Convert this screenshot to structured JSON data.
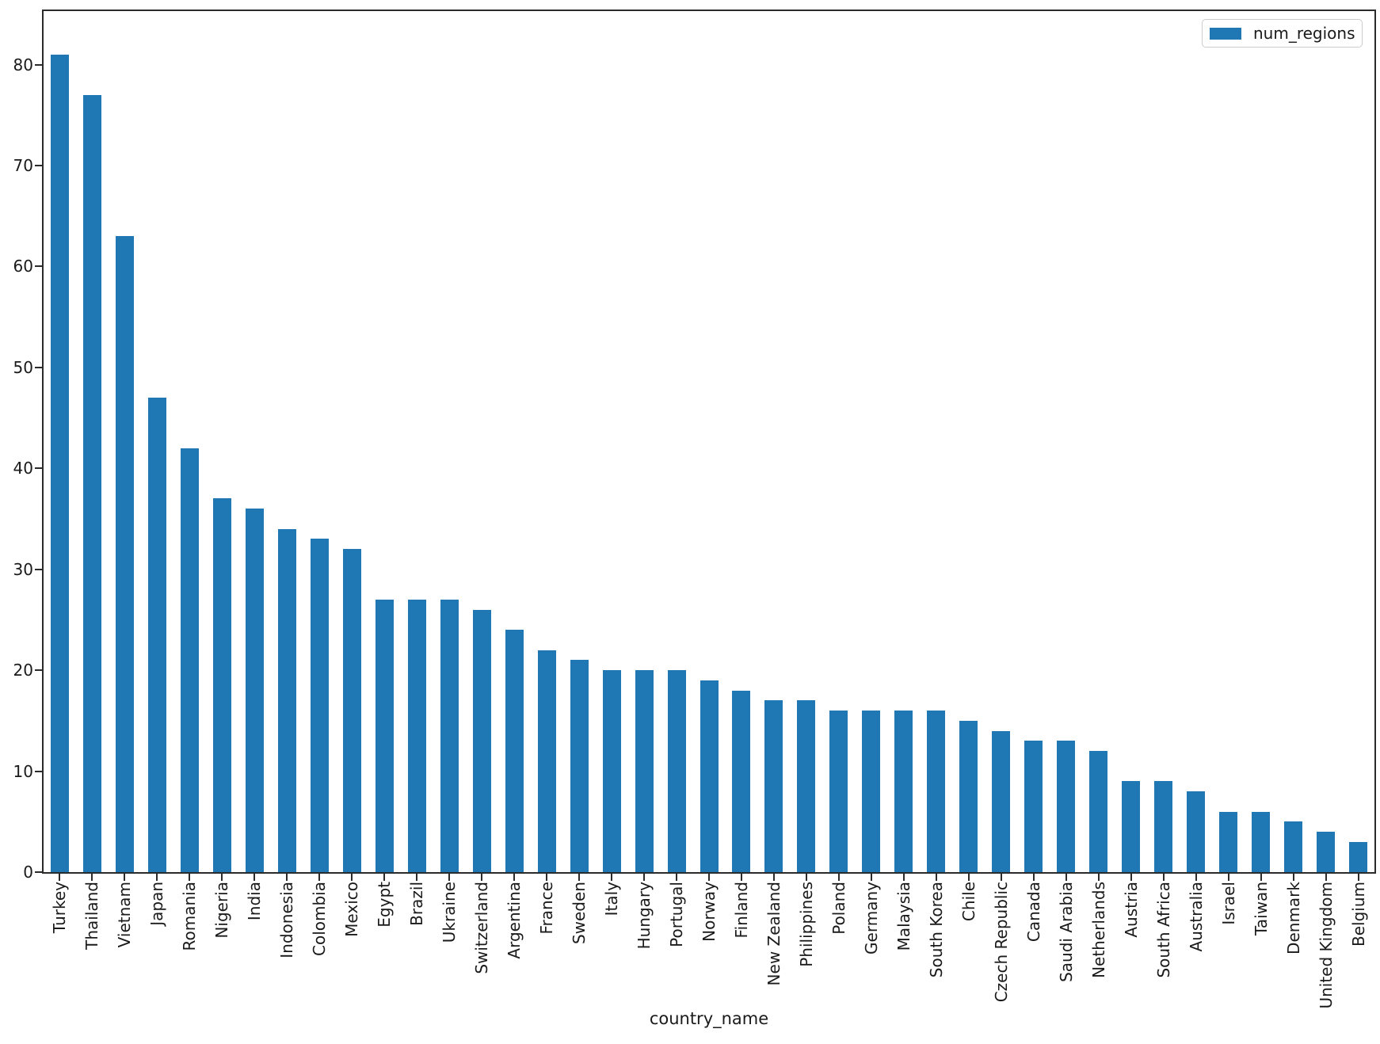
{
  "figure": {
    "xlabel": "country_name",
    "legend_label": "num_regions"
  },
  "chart_data": {
    "type": "bar",
    "title": "",
    "xlabel": "country_name",
    "ylabel": "",
    "grid": false,
    "legend_position": "upper right",
    "bar_color": "#1f77b4",
    "ylim": [
      0,
      85.3
    ],
    "yticks": [
      0,
      10,
      20,
      30,
      40,
      50,
      60,
      70,
      80
    ],
    "categories": [
      "Turkey",
      "Thailand",
      "Vietnam",
      "Japan",
      "Romania",
      "Nigeria",
      "India",
      "Indonesia",
      "Colombia",
      "Mexico",
      "Egypt",
      "Brazil",
      "Ukraine",
      "Switzerland",
      "Argentina",
      "France",
      "Sweden",
      "Italy",
      "Hungary",
      "Portugal",
      "Norway",
      "Finland",
      "New Zealand",
      "Philippines",
      "Poland",
      "Germany",
      "Malaysia",
      "South Korea",
      "Chile",
      "Czech Republic",
      "Canada",
      "Saudi Arabia",
      "Netherlands",
      "Austria",
      "South Africa",
      "Australia",
      "Israel",
      "Taiwan",
      "Denmark",
      "United Kingdom",
      "Belgium"
    ],
    "series": [
      {
        "name": "num_regions",
        "color": "#1f77b4",
        "values": [
          81,
          77,
          63,
          47,
          42,
          37,
          36,
          34,
          33,
          32,
          27,
          27,
          27,
          26,
          24,
          22,
          21,
          20,
          20,
          20,
          19,
          18,
          17,
          17,
          16,
          16,
          16,
          16,
          15,
          14,
          13,
          13,
          12,
          9,
          9,
          8,
          6,
          6,
          5,
          4,
          3
        ]
      }
    ]
  }
}
